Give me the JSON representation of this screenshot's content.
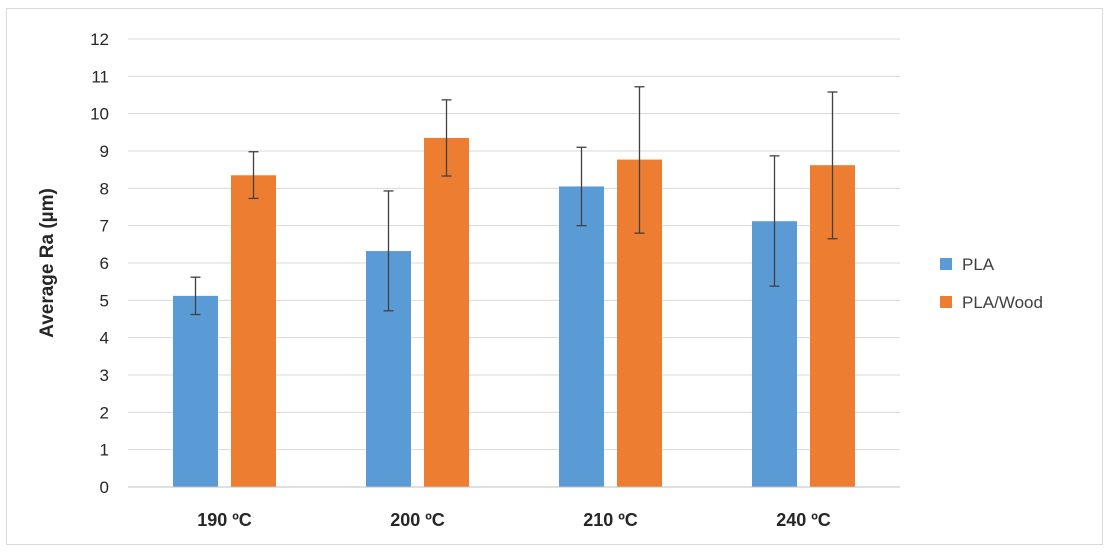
{
  "chart_data": {
    "type": "bar",
    "categories": [
      "190 ºC",
      "200 ºC",
      "210 ºC",
      "240 ºC"
    ],
    "series": [
      {
        "name": "PLA",
        "color": "#5b9bd5",
        "values": [
          5.12,
          6.32,
          8.05,
          7.12
        ],
        "error_low": [
          4.62,
          4.72,
          7.0,
          5.38
        ],
        "error_high": [
          5.62,
          7.93,
          9.1,
          8.87
        ]
      },
      {
        "name": "PLA/Wood",
        "color": "#ed7d31",
        "values": [
          8.35,
          9.35,
          8.77,
          8.62
        ],
        "error_low": [
          7.73,
          8.33,
          6.8,
          6.65
        ],
        "error_high": [
          8.98,
          10.37,
          10.72,
          10.58
        ]
      }
    ],
    "xlabel": "",
    "ylabel": "Average Ra (µm)",
    "ylim": [
      0,
      12
    ],
    "yticks": [
      "0",
      "1",
      "2",
      "3",
      "4",
      "5",
      "6",
      "7",
      "8",
      "9",
      "10",
      "11",
      "12"
    ],
    "grid": true,
    "legend_position": "right"
  }
}
